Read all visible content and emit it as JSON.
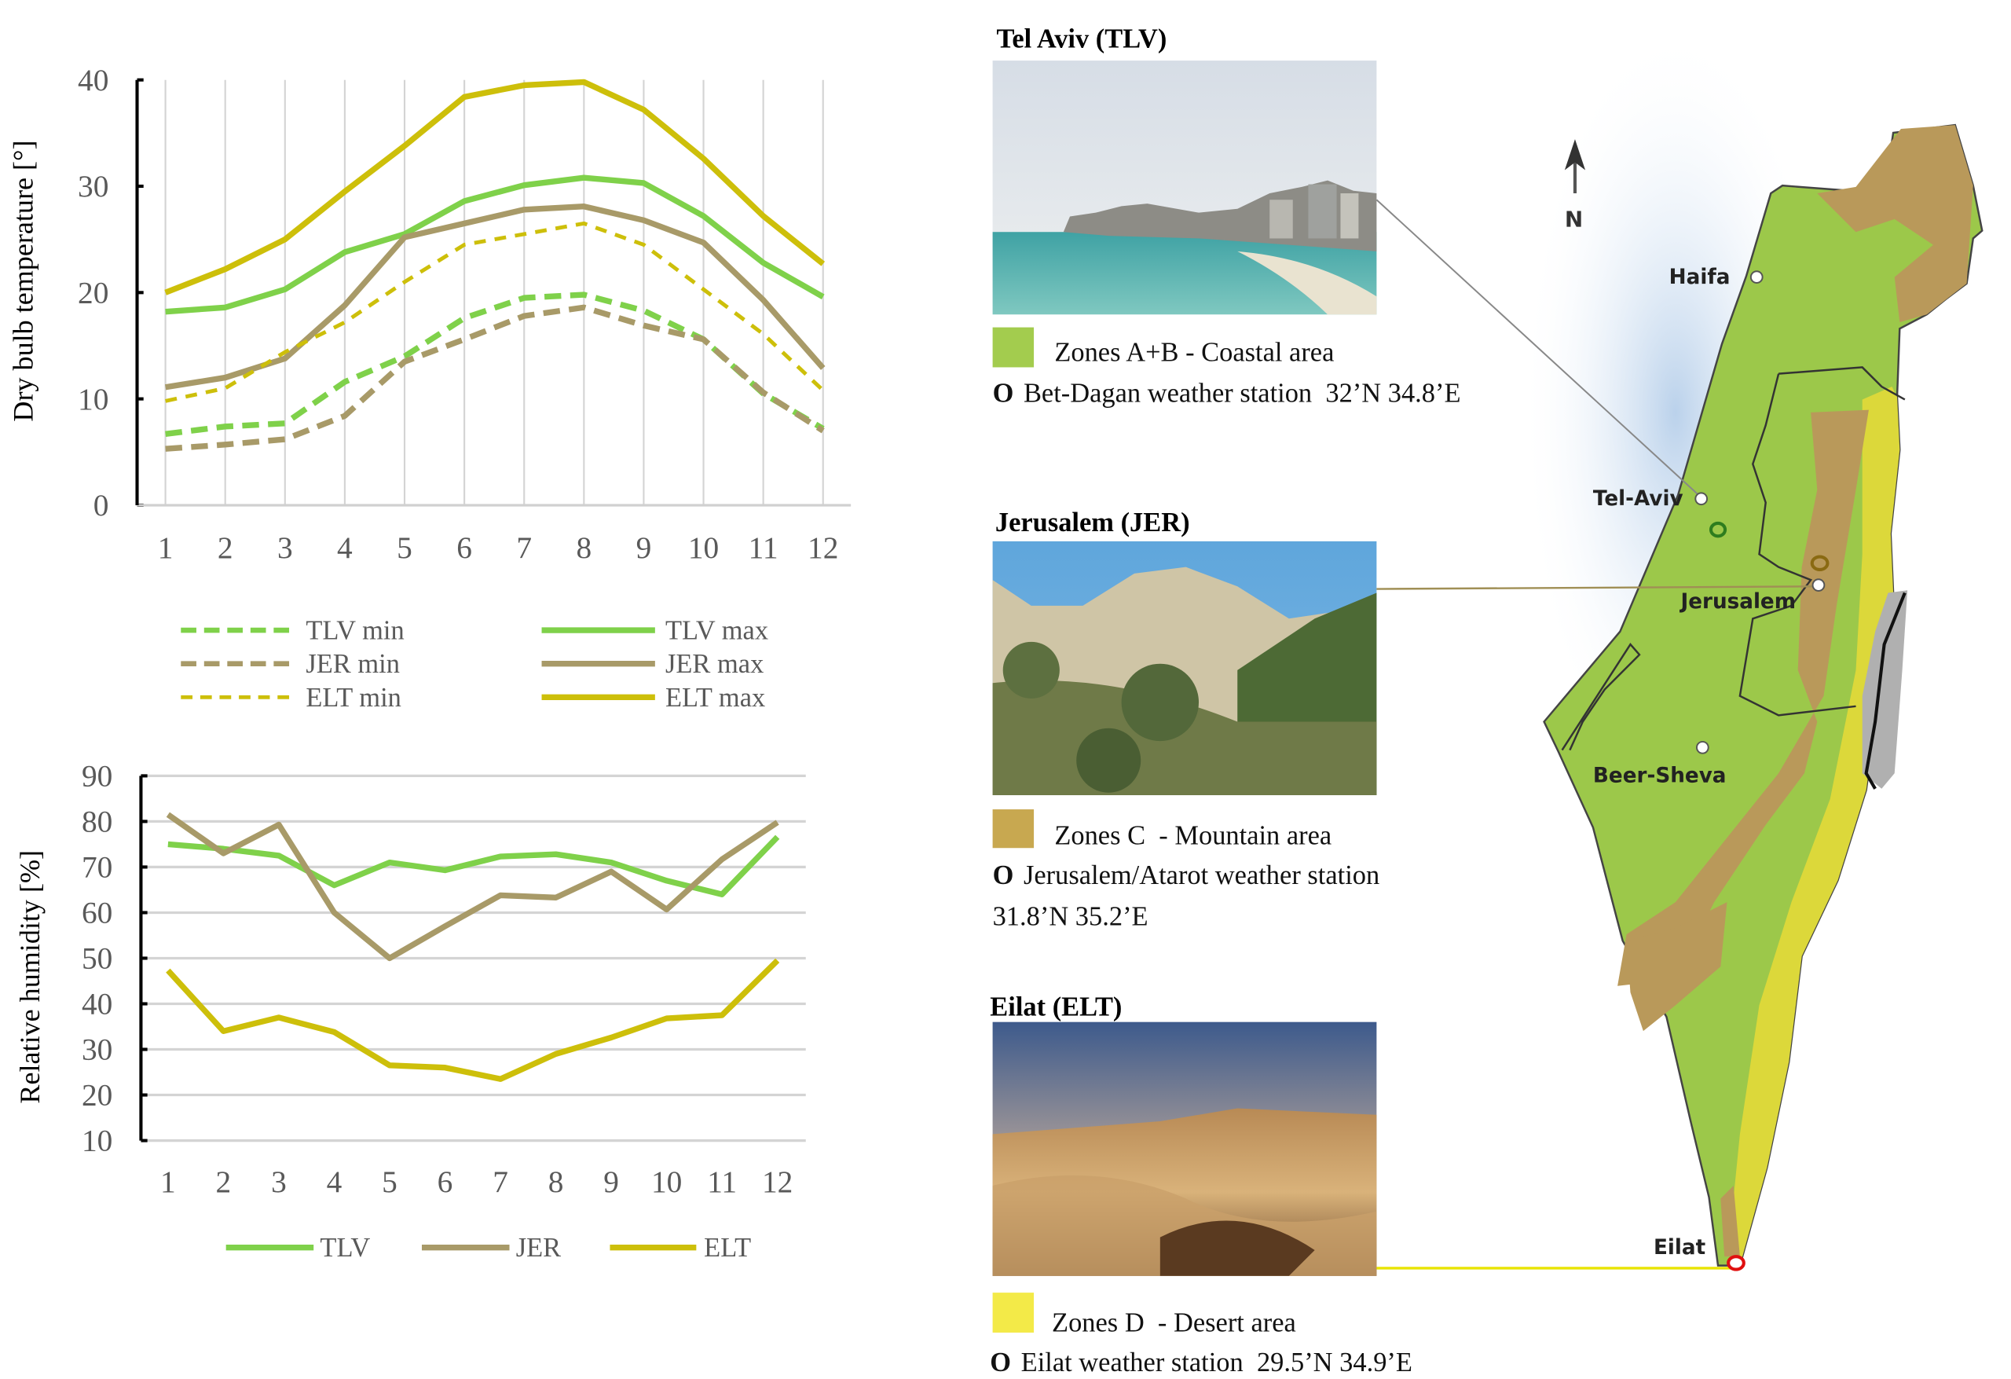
{
  "colors": {
    "tlv": "#7fd14a",
    "jer": "#a89a68",
    "elt": "#cdbf0a",
    "zoneAB": "#a3cc4e",
    "zoneC": "#c8a850",
    "zoneD": "#f3ea48",
    "stationTLV": "#2e7d1e",
    "stationJER": "#c49a12",
    "stationELT": "#e01010"
  },
  "chart_data": [
    {
      "type": "line",
      "title": "",
      "xlabel": "",
      "ylabel": "Dry bulb temperature [°]",
      "x": [
        1,
        2,
        3,
        4,
        5,
        6,
        7,
        8,
        9,
        10,
        11,
        12
      ],
      "x_tick_labels": [
        "1",
        "2",
        "3",
        "4",
        "5",
        "6",
        "7",
        "8",
        "9",
        "10",
        "11",
        "12"
      ],
      "y_tick_labels": [
        "0",
        "10",
        "20",
        "30",
        "40"
      ],
      "ylim": [
        0,
        40
      ],
      "grid": "vertical",
      "legend": "bottom",
      "series": [
        {
          "name": "TLV min",
          "style": "dashed",
          "color_key": "tlv",
          "values": [
            6.7,
            7.4,
            7.7,
            11.6,
            14.0,
            17.6,
            19.5,
            19.8,
            18.3,
            15.6,
            10.5,
            7.2
          ]
        },
        {
          "name": "TLV max",
          "style": "solid",
          "color_key": "tlv",
          "values": [
            18.2,
            18.6,
            20.3,
            23.8,
            25.5,
            28.6,
            30.1,
            30.8,
            30.3,
            27.2,
            22.8,
            19.6
          ]
        },
        {
          "name": "JER min",
          "style": "dashed",
          "color_key": "jer",
          "values": [
            5.3,
            5.7,
            6.2,
            8.4,
            13.5,
            15.6,
            17.8,
            18.6,
            16.9,
            15.6,
            10.6,
            7.0
          ]
        },
        {
          "name": "JER max",
          "style": "solid",
          "color_key": "jer",
          "values": [
            11.1,
            12.0,
            13.8,
            18.8,
            25.2,
            26.5,
            27.8,
            28.1,
            26.8,
            24.7,
            19.3,
            12.9
          ]
        },
        {
          "name": "ELT min",
          "style": "thin-dashed",
          "color_key": "elt",
          "values": [
            9.8,
            11.0,
            14.4,
            17.2,
            21.0,
            24.5,
            25.5,
            26.5,
            24.5,
            20.3,
            16.1,
            10.8
          ]
        },
        {
          "name": "ELT max",
          "style": "solid",
          "color_key": "elt",
          "values": [
            20.0,
            22.2,
            25.0,
            29.5,
            33.8,
            38.4,
            39.5,
            39.8,
            37.2,
            32.6,
            27.2,
            22.7
          ]
        }
      ]
    },
    {
      "type": "line",
      "title": "",
      "xlabel": "",
      "ylabel": "Relative humidity [%]",
      "x": [
        1,
        2,
        3,
        4,
        5,
        6,
        7,
        8,
        9,
        10,
        11,
        12
      ],
      "x_tick_labels": [
        "1",
        "2",
        "3",
        "4",
        "5",
        "6",
        "7",
        "8",
        "9",
        "10",
        "11",
        "12"
      ],
      "y_tick_labels": [
        "10",
        "20",
        "30",
        "40",
        "50",
        "60",
        "70",
        "80",
        "90"
      ],
      "ylim": [
        10,
        90
      ],
      "grid": "horizontal",
      "legend": "bottom",
      "series": [
        {
          "name": "TLV",
          "style": "solid",
          "color_key": "tlv",
          "values": [
            75.0,
            74.0,
            72.5,
            66.0,
            71.0,
            69.3,
            72.3,
            72.8,
            71.0,
            67.0,
            64.0,
            76.6
          ]
        },
        {
          "name": "JER",
          "style": "solid",
          "color_key": "jer",
          "values": [
            81.5,
            73.0,
            79.3,
            60.0,
            50.0,
            57.0,
            63.8,
            63.3,
            69.0,
            60.7,
            71.7,
            79.8
          ]
        },
        {
          "name": "ELT",
          "style": "solid",
          "color_key": "elt",
          "values": [
            47.3,
            34.0,
            37.0,
            33.8,
            26.5,
            26.0,
            23.5,
            29.0,
            32.6,
            36.8,
            37.5,
            49.5
          ]
        }
      ]
    }
  ],
  "panels": {
    "tlv": {
      "title": "Tel Aviv (TLV)",
      "zone": "Zones A+B - Coastal area",
      "station_marker": "O",
      "station": "Bet-Dagan weather station  32’N 34.8’E"
    },
    "jer": {
      "title": "Jerusalem (JER)",
      "zone": "Zones C  - Mountain area",
      "station_marker": "O",
      "station": "Jerusalem/Atarot weather station",
      "coords": "31.8’N 35.2’E"
    },
    "elt": {
      "title": "Eilat (ELT)",
      "zone": "Zones D  - Desert area",
      "station_marker": "O",
      "station": "Eilat weather station  29.5’N 34.9’E"
    }
  },
  "map": {
    "north_label": "N",
    "station_marker": "O",
    "cities": {
      "haifa": "Haifa",
      "telaviv": "Tel-Aviv",
      "jerusalem": "Jerusalem",
      "beersheva": "Beer-Sheva",
      "eilat": "Eilat"
    }
  }
}
